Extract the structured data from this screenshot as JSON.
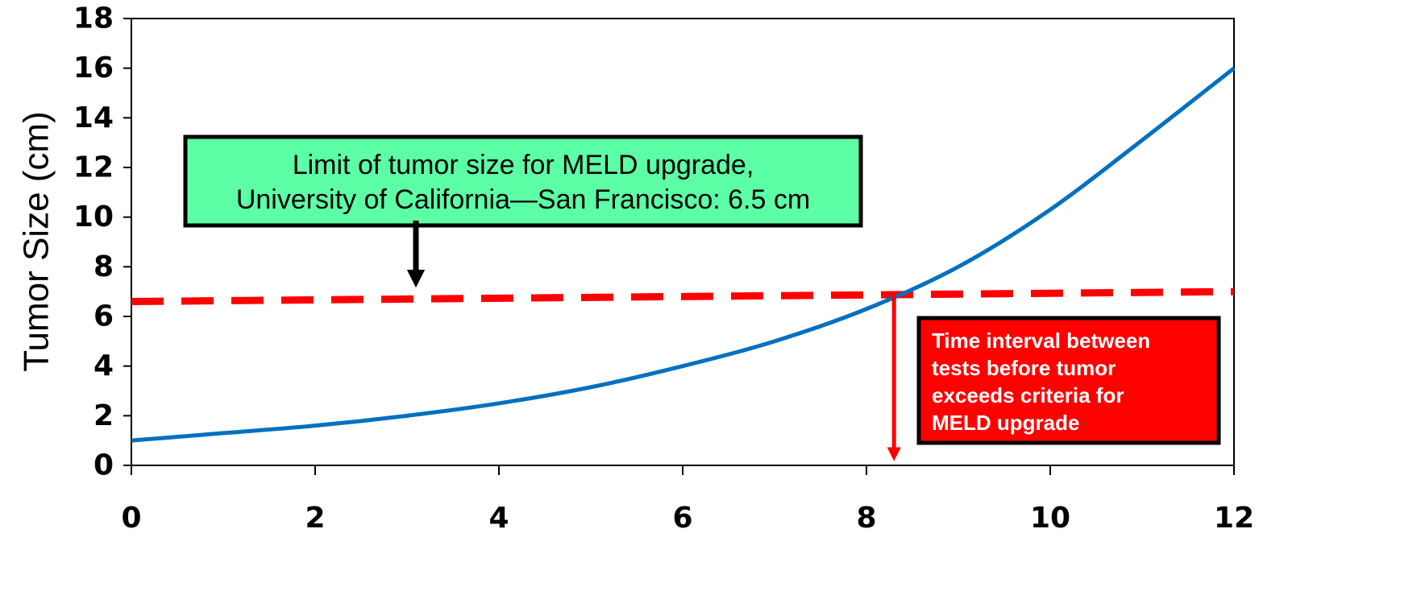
{
  "chart_data": {
    "type": "line",
    "title": "",
    "xlabel": "",
    "ylabel": "Tumor Size (cm)",
    "xlim": [
      0,
      12
    ],
    "ylim": [
      0,
      18
    ],
    "x_ticks": [
      "0",
      "2",
      "4",
      "6",
      "8",
      "10",
      "12"
    ],
    "y_ticks": [
      "0",
      "2",
      "4",
      "6",
      "8",
      "10",
      "12",
      "14",
      "16",
      "18"
    ],
    "grid": false,
    "legend": "none",
    "series": [
      {
        "color": "#0070c0",
        "x": [
          0,
          1,
          2,
          3,
          4,
          5,
          6,
          7,
          8,
          9,
          10,
          11,
          12
        ],
        "y": [
          1.0,
          1.3,
          1.6,
          2.0,
          2.5,
          3.15,
          4.0,
          5.0,
          6.3,
          8.0,
          10.3,
          13.1,
          16.0
        ]
      }
    ],
    "threshold_line": {
      "color": "#ff0000",
      "style": "dashed",
      "x": [
        0,
        12
      ],
      "y": [
        6.6,
        7.0
      ]
    },
    "marker_arrow": {
      "color": "#ff0000",
      "x": 8.3,
      "y_from": 6.9,
      "y_to": 0
    },
    "annotations": [
      {
        "id": "limit_note",
        "lines": [
          "Limit of tumor size for MELD upgrade,",
          "University of California—San Francisco: 6.5 cm"
        ],
        "fill": "#5cffa5",
        "border": "#000000"
      },
      {
        "id": "interval_note",
        "lines": [
          "Time interval between",
          "tests before tumor",
          "exceeds criteria for",
          "MELD upgrade"
        ],
        "fill": "#ff0000",
        "border": "#000000"
      }
    ]
  }
}
